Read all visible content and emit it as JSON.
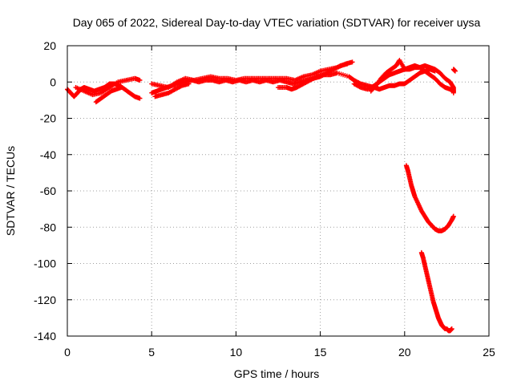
{
  "chart_data": {
    "type": "scatter",
    "title": "Day 065 of 2022, Sidereal Day-to-day VTEC variation (SDTVAR) for receiver uysa",
    "xlabel": "GPS time / hours",
    "ylabel": "SDTVAR / TECUs",
    "xlim": [
      0,
      25
    ],
    "ylim": [
      -140,
      20
    ],
    "xticks": [
      0,
      5,
      10,
      15,
      20,
      25
    ],
    "yticks": [
      20,
      0,
      -20,
      -40,
      -60,
      -80,
      -100,
      -120,
      -140
    ],
    "grid": true,
    "marker": "+",
    "color": "#ff0000",
    "series": [
      {
        "name": "main band",
        "points": [
          [
            0.0,
            -4
          ],
          [
            0.2,
            -6
          ],
          [
            0.4,
            -8
          ],
          [
            0.6,
            -6
          ],
          [
            0.8,
            -4
          ],
          [
            1.0,
            -3
          ],
          [
            1.3,
            -4
          ],
          [
            1.6,
            -5
          ],
          [
            1.9,
            -4
          ],
          [
            2.2,
            -3
          ],
          [
            2.5,
            -1
          ],
          [
            2.8,
            -1
          ],
          [
            3.1,
            -2
          ],
          [
            3.4,
            -4
          ],
          [
            3.7,
            -6
          ],
          [
            4.0,
            -8
          ],
          [
            4.3,
            -9
          ],
          [
            0.5,
            -3
          ],
          [
            1.0,
            -5
          ],
          [
            1.5,
            -7
          ],
          [
            2.0,
            -6
          ],
          [
            2.5,
            -3
          ],
          [
            3.0,
            0
          ],
          [
            3.5,
            1
          ],
          [
            4.0,
            2
          ],
          [
            4.3,
            1
          ],
          [
            1.7,
            -11
          ],
          [
            2.0,
            -9
          ],
          [
            2.3,
            -7
          ],
          [
            2.6,
            -5
          ],
          [
            2.9,
            -4
          ],
          [
            3.2,
            -3
          ],
          [
            5.0,
            -6
          ],
          [
            5.3,
            -5
          ],
          [
            5.6,
            -4
          ],
          [
            5.9,
            -3
          ],
          [
            6.2,
            -2
          ],
          [
            6.6,
            -1
          ],
          [
            7.0,
            0
          ],
          [
            7.4,
            1
          ],
          [
            7.8,
            0
          ],
          [
            8.2,
            1
          ],
          [
            8.6,
            1
          ],
          [
            9.0,
            0
          ],
          [
            9.4,
            1
          ],
          [
            9.8,
            0
          ],
          [
            10.2,
            1
          ],
          [
            10.6,
            0
          ],
          [
            11.0,
            1
          ],
          [
            11.4,
            0
          ],
          [
            11.8,
            1
          ],
          [
            12.2,
            0
          ],
          [
            12.6,
            1
          ],
          [
            13.0,
            0
          ],
          [
            13.4,
            -1
          ],
          [
            13.8,
            0
          ],
          [
            14.2,
            1
          ],
          [
            14.6,
            2
          ],
          [
            15.0,
            3
          ],
          [
            15.4,
            5
          ],
          [
            15.8,
            7
          ],
          [
            16.2,
            9
          ],
          [
            16.6,
            10
          ],
          [
            5.0,
            -1
          ],
          [
            5.5,
            -2
          ],
          [
            6.0,
            -3
          ],
          [
            6.5,
            0
          ],
          [
            7.0,
            2
          ],
          [
            7.5,
            1
          ],
          [
            8.0,
            2
          ],
          [
            8.5,
            3
          ],
          [
            9.0,
            2
          ],
          [
            9.5,
            2
          ],
          [
            10.0,
            1
          ],
          [
            10.5,
            2
          ],
          [
            11.0,
            2
          ],
          [
            11.5,
            2
          ],
          [
            12.0,
            2
          ],
          [
            12.5,
            2
          ],
          [
            13.0,
            2
          ],
          [
            13.5,
            1
          ],
          [
            14.0,
            3
          ],
          [
            14.5,
            4
          ],
          [
            15.0,
            6
          ],
          [
            15.5,
            7
          ],
          [
            16.0,
            8
          ],
          [
            16.5,
            10
          ],
          [
            16.9,
            11
          ],
          [
            5.2,
            -8
          ],
          [
            5.6,
            -7
          ],
          [
            6.0,
            -6
          ],
          [
            6.4,
            -4
          ],
          [
            6.8,
            -2
          ],
          [
            7.2,
            -1
          ],
          [
            12.5,
            -3
          ],
          [
            13.0,
            -3
          ],
          [
            13.3,
            -4
          ],
          [
            13.6,
            -3
          ],
          [
            14.0,
            -1
          ],
          [
            14.4,
            1
          ],
          [
            14.8,
            3
          ],
          [
            15.2,
            4
          ],
          [
            15.6,
            4
          ],
          [
            16.0,
            5
          ],
          [
            16.7,
            3
          ],
          [
            17.0,
            1
          ],
          [
            17.4,
            -1
          ],
          [
            17.8,
            -2
          ],
          [
            18.2,
            -3
          ],
          [
            18.5,
            -4
          ],
          [
            18.8,
            -3
          ],
          [
            19.1,
            -2
          ],
          [
            19.4,
            -2
          ],
          [
            19.7,
            -1
          ],
          [
            20.0,
            -1
          ],
          [
            20.3,
            1
          ],
          [
            20.6,
            3
          ],
          [
            20.9,
            5
          ],
          [
            21.2,
            6
          ],
          [
            21.5,
            7
          ],
          [
            21.8,
            6
          ],
          [
            17.0,
            -1
          ],
          [
            17.4,
            -3
          ],
          [
            17.8,
            -4
          ],
          [
            18.2,
            -2
          ],
          [
            18.5,
            0
          ],
          [
            18.8,
            2
          ],
          [
            19.1,
            4
          ],
          [
            19.4,
            5
          ],
          [
            19.7,
            6
          ],
          [
            20.0,
            7
          ],
          [
            20.3,
            7
          ],
          [
            20.6,
            8
          ],
          [
            20.9,
            8
          ],
          [
            21.2,
            9
          ],
          [
            21.5,
            8
          ],
          [
            21.8,
            7
          ],
          [
            22.1,
            5
          ],
          [
            22.4,
            2
          ],
          [
            22.7,
            0
          ],
          [
            22.9,
            -3
          ],
          [
            22.9,
            -6
          ],
          [
            18.0,
            -5
          ],
          [
            18.3,
            -2
          ],
          [
            18.6,
            2
          ],
          [
            18.9,
            5
          ],
          [
            19.2,
            7
          ],
          [
            19.5,
            9
          ],
          [
            19.7,
            12
          ],
          [
            20.0,
            7
          ],
          [
            20.3,
            8
          ],
          [
            20.6,
            9
          ],
          [
            20.9,
            8
          ],
          [
            21.2,
            6
          ],
          [
            21.5,
            4
          ],
          [
            21.8,
            2
          ],
          [
            22.1,
            -1
          ],
          [
            22.4,
            -3
          ],
          [
            22.7,
            -4
          ],
          [
            22.9,
            -5
          ],
          [
            22.9,
            7
          ],
          [
            23.0,
            6
          ]
        ]
      },
      {
        "name": "upper descending arc",
        "points": [
          [
            20.1,
            -46
          ],
          [
            20.2,
            -49
          ],
          [
            20.3,
            -53
          ],
          [
            20.4,
            -57
          ],
          [
            20.5,
            -60
          ],
          [
            20.6,
            -63
          ],
          [
            20.8,
            -67
          ],
          [
            21.0,
            -71
          ],
          [
            21.2,
            -74
          ],
          [
            21.4,
            -77
          ],
          [
            21.6,
            -79
          ],
          [
            21.8,
            -81
          ],
          [
            22.0,
            -82
          ],
          [
            22.2,
            -82
          ],
          [
            22.4,
            -81
          ],
          [
            22.6,
            -79
          ],
          [
            22.8,
            -76
          ],
          [
            22.9,
            -74
          ]
        ]
      },
      {
        "name": "lower descending arc",
        "points": [
          [
            21.0,
            -94
          ],
          [
            21.1,
            -97
          ],
          [
            21.2,
            -101
          ],
          [
            21.3,
            -105
          ],
          [
            21.4,
            -109
          ],
          [
            21.5,
            -113
          ],
          [
            21.6,
            -117
          ],
          [
            21.7,
            -121
          ],
          [
            21.8,
            -124
          ],
          [
            21.9,
            -127
          ],
          [
            22.0,
            -130
          ],
          [
            22.1,
            -132
          ],
          [
            22.2,
            -134
          ],
          [
            22.3,
            -135
          ],
          [
            22.4,
            -136
          ],
          [
            22.5,
            -136
          ],
          [
            22.6,
            -137
          ],
          [
            22.7,
            -137
          ],
          [
            22.8,
            -136
          ]
        ]
      }
    ]
  }
}
